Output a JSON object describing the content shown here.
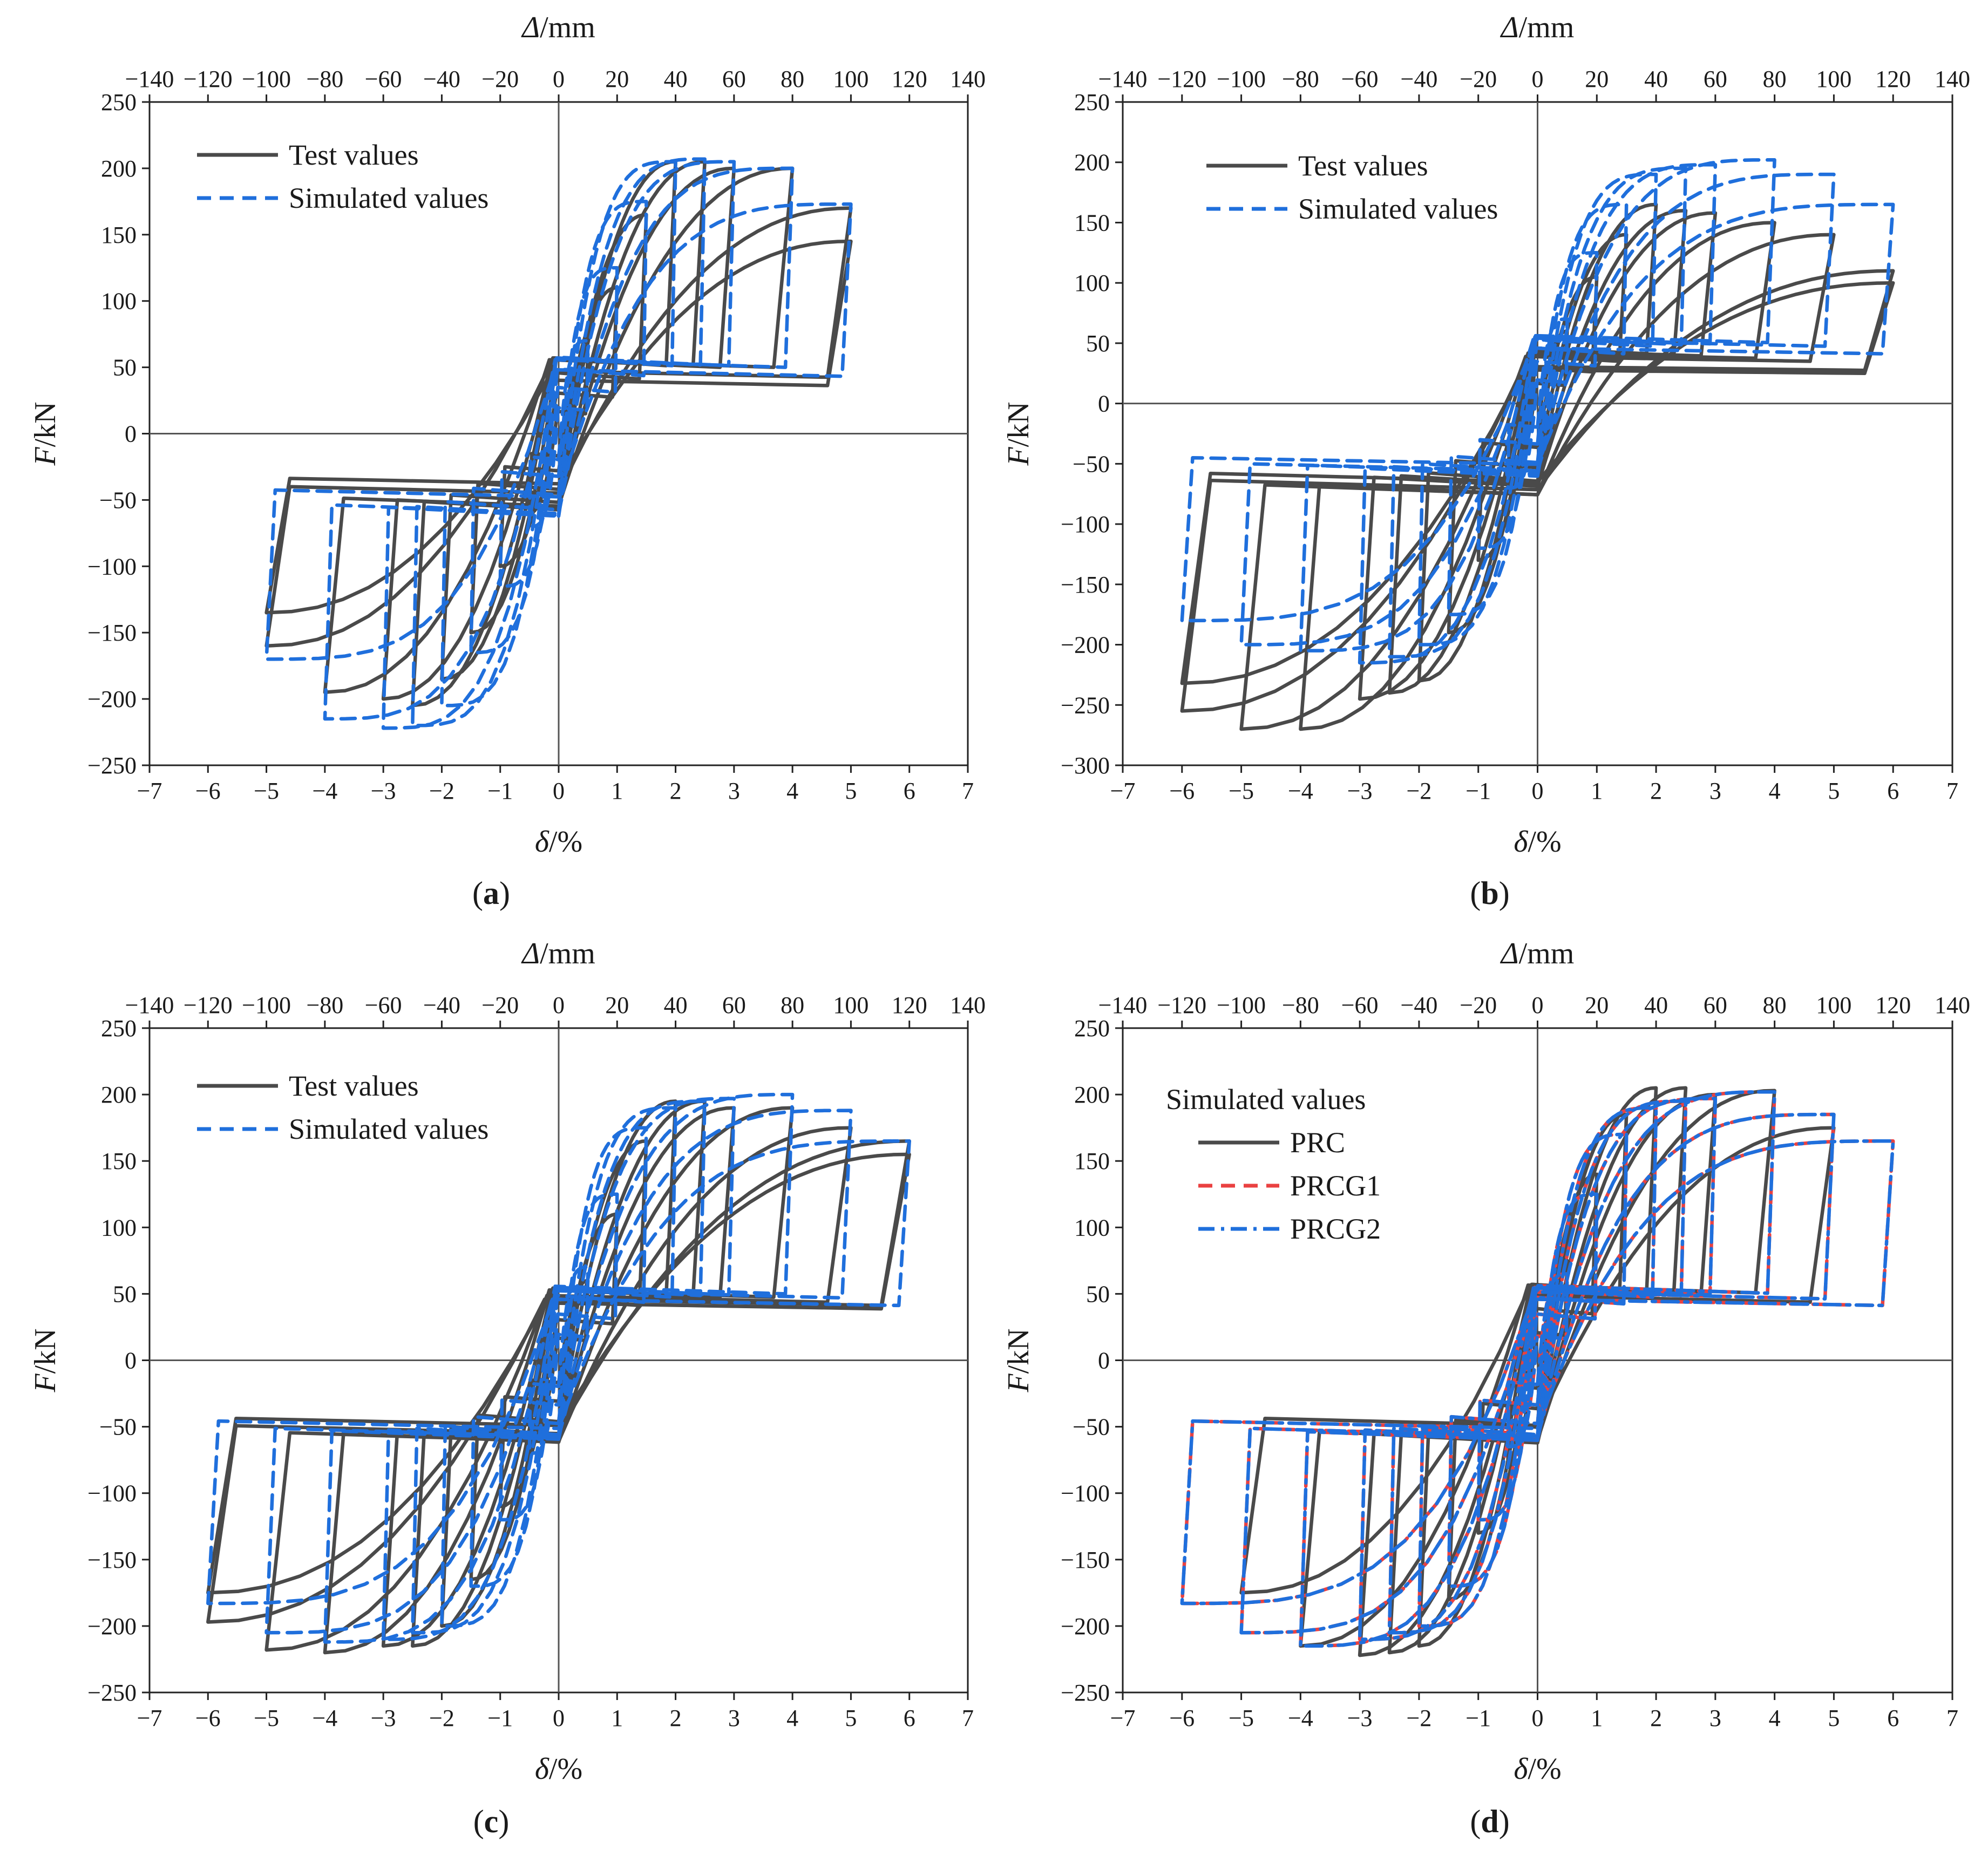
{
  "figure": {
    "panels": [
      {
        "id": "a",
        "caption": "a",
        "caption_open": "(",
        "caption_close": ")",
        "legend": {
          "title": "",
          "entries": [
            {
              "label": "Test values",
              "color": "#4a4a4a",
              "style": "solid"
            },
            {
              "label": "Simulated values",
              "color": "#1f6fdc",
              "style": "dashed"
            }
          ]
        }
      },
      {
        "id": "b",
        "caption": "b",
        "caption_open": "(",
        "caption_close": ")",
        "legend": {
          "title": "",
          "entries": [
            {
              "label": "Test values",
              "color": "#4a4a4a",
              "style": "solid"
            },
            {
              "label": "Simulated values",
              "color": "#1f6fdc",
              "style": "dashed"
            }
          ]
        }
      },
      {
        "id": "c",
        "caption": "c",
        "caption_open": "(",
        "caption_close": ")",
        "legend": {
          "title": "",
          "entries": [
            {
              "label": "Test values",
              "color": "#4a4a4a",
              "style": "solid"
            },
            {
              "label": "Simulated values",
              "color": "#1f6fdc",
              "style": "dashed"
            }
          ]
        }
      },
      {
        "id": "d",
        "caption": "d",
        "caption_open": "(",
        "caption_close": ")",
        "legend": {
          "title": "Simulated values",
          "entries": [
            {
              "label": "PRC",
              "color": "#4a4a4a",
              "style": "solid"
            },
            {
              "label": "PRCG1",
              "color": "#ea4141",
              "style": "dashed"
            },
            {
              "label": "PRCG2",
              "color": "#1f6fdc",
              "style": "dashdot"
            }
          ]
        }
      }
    ]
  },
  "chart_data": [
    {
      "panel": "a",
      "type": "line",
      "title": "",
      "xlabel_sym": "δ",
      "xlabel_unit": "/%",
      "ylabel_sym": "F",
      "ylabel_unit": "/kN",
      "x2label_sym": "Δ",
      "x2label_unit": "/mm",
      "xlim": [
        -7,
        7
      ],
      "ylim": [
        -250,
        250
      ],
      "xticks": [
        -7,
        -6,
        -5,
        -4,
        -3,
        -2,
        -1,
        0,
        1,
        2,
        3,
        4,
        5,
        6,
        7
      ],
      "yticks": [
        -250,
        -200,
        -150,
        -100,
        -50,
        0,
        50,
        100,
        150,
        200,
        250
      ],
      "x2ticks": [
        -140,
        -120,
        -100,
        -80,
        -60,
        -40,
        -20,
        0,
        20,
        40,
        60,
        80,
        100,
        120,
        140
      ],
      "x2_per_x": 20,
      "series": [
        {
          "name": "Test values",
          "style": "solid",
          "color": "#4a4a4a",
          "cycles": [
            {
              "d": 0.5,
              "p": 60,
              "n": -60
            },
            {
              "d": 1.0,
              "p": 110,
              "n": -100
            },
            {
              "d": 1.5,
              "p": 165,
              "n": -150
            },
            {
              "d": 2.0,
              "p": 205,
              "n": -185
            },
            {
              "d": 2.5,
              "p": 205,
              "n": -205
            },
            {
              "d": 3.0,
              "p": 200,
              "n": -200
            },
            {
              "d": 4.0,
              "p": 200,
              "n": -195
            },
            {
              "d": 5.0,
              "p": 170,
              "n": -160
            },
            {
              "d": 5.0,
              "p": 145,
              "n": -135
            }
          ]
        },
        {
          "name": "Simulated values",
          "style": "dashed",
          "color": "#1f6fdc",
          "cycles": [
            {
              "d": 0.5,
              "p": 70,
              "n": -70
            },
            {
              "d": 1.0,
              "p": 125,
              "n": -115
            },
            {
              "d": 1.5,
              "p": 175,
              "n": -165
            },
            {
              "d": 2.0,
              "p": 205,
              "n": -205
            },
            {
              "d": 2.5,
              "p": 207,
              "n": -220
            },
            {
              "d": 3.0,
              "p": 205,
              "n": -222
            },
            {
              "d": 4.0,
              "p": 200,
              "n": -215
            },
            {
              "d": 5.0,
              "p": 173,
              "n": -170
            }
          ]
        }
      ]
    },
    {
      "panel": "b",
      "type": "line",
      "title": "",
      "xlabel_sym": "δ",
      "xlabel_unit": "/%",
      "ylabel_sym": "F",
      "ylabel_unit": "/kN",
      "x2label_sym": "Δ",
      "x2label_unit": "/mm",
      "xlim": [
        -7,
        7
      ],
      "ylim": [
        -300,
        250
      ],
      "xticks": [
        -7,
        -6,
        -5,
        -4,
        -3,
        -2,
        -1,
        0,
        1,
        2,
        3,
        4,
        5,
        6,
        7
      ],
      "yticks": [
        -300,
        -250,
        -200,
        -150,
        -100,
        -50,
        0,
        50,
        100,
        150,
        200,
        250
      ],
      "x2ticks": [
        -140,
        -120,
        -100,
        -80,
        -60,
        -40,
        -20,
        0,
        20,
        40,
        60,
        80,
        100,
        120,
        140
      ],
      "x2_per_x": 20,
      "series": [
        {
          "name": "Test values",
          "style": "solid",
          "color": "#4a4a4a",
          "cycles": [
            {
              "d": 0.5,
              "p": 60,
              "n": -70
            },
            {
              "d": 1.0,
              "p": 105,
              "n": -130
            },
            {
              "d": 1.5,
              "p": 140,
              "n": -190
            },
            {
              "d": 2.0,
              "p": 165,
              "n": -230
            },
            {
              "d": 2.5,
              "p": 160,
              "n": -240
            },
            {
              "d": 3.0,
              "p": 158,
              "n": -245
            },
            {
              "d": 4.0,
              "p": 150,
              "n": -270
            },
            {
              "d": 5.0,
              "p": 140,
              "n": -270
            },
            {
              "d": 6.0,
              "p": 110,
              "n": -255
            },
            {
              "d": 6.0,
              "p": 100,
              "n": -232
            }
          ]
        },
        {
          "name": "Simulated values",
          "style": "dashed",
          "color": "#1f6fdc",
          "cycles": [
            {
              "d": 0.5,
              "p": 70,
              "n": -70
            },
            {
              "d": 1.0,
              "p": 125,
              "n": -120
            },
            {
              "d": 1.5,
              "p": 165,
              "n": -175
            },
            {
              "d": 2.0,
              "p": 190,
              "n": -200
            },
            {
              "d": 2.5,
              "p": 195,
              "n": -210
            },
            {
              "d": 3.0,
              "p": 198,
              "n": -215
            },
            {
              "d": 4.0,
              "p": 202,
              "n": -205
            },
            {
              "d": 5.0,
              "p": 190,
              "n": -200
            },
            {
              "d": 6.0,
              "p": 165,
              "n": -180
            }
          ]
        }
      ]
    },
    {
      "panel": "c",
      "type": "line",
      "title": "",
      "xlabel_sym": "δ",
      "xlabel_unit": "/%",
      "ylabel_sym": "F",
      "ylabel_unit": "/kN",
      "x2label_sym": "Δ",
      "x2label_unit": "/mm",
      "xlim": [
        -7,
        7
      ],
      "ylim": [
        -250,
        250
      ],
      "xticks": [
        -7,
        -6,
        -5,
        -4,
        -3,
        -2,
        -1,
        0,
        1,
        2,
        3,
        4,
        5,
        6,
        7
      ],
      "yticks": [
        -250,
        -200,
        -150,
        -100,
        -50,
        0,
        50,
        100,
        150,
        200,
        250
      ],
      "x2ticks": [
        -140,
        -120,
        -100,
        -80,
        -60,
        -40,
        -20,
        0,
        20,
        40,
        60,
        80,
        100,
        120,
        140
      ],
      "x2_per_x": 20,
      "series": [
        {
          "name": "Test values",
          "style": "solid",
          "color": "#4a4a4a",
          "cycles": [
            {
              "d": 0.5,
              "p": 60,
              "n": -60
            },
            {
              "d": 1.0,
              "p": 110,
              "n": -110
            },
            {
              "d": 1.5,
              "p": 165,
              "n": -165
            },
            {
              "d": 2.0,
              "p": 195,
              "n": -200
            },
            {
              "d": 2.5,
              "p": 195,
              "n": -215
            },
            {
              "d": 3.0,
              "p": 190,
              "n": -215
            },
            {
              "d": 4.0,
              "p": 190,
              "n": -220
            },
            {
              "d": 5.0,
              "p": 175,
              "n": -218
            },
            {
              "d": 6.0,
              "p": 165,
              "n": -197
            },
            {
              "d": 6.0,
              "p": 155,
              "n": -175
            }
          ]
        },
        {
          "name": "Simulated values",
          "style": "dashed",
          "color": "#1f6fdc",
          "cycles": [
            {
              "d": 0.5,
              "p": 70,
              "n": -70
            },
            {
              "d": 1.0,
              "p": 125,
              "n": -120
            },
            {
              "d": 1.5,
              "p": 175,
              "n": -170
            },
            {
              "d": 2.0,
              "p": 190,
              "n": -200
            },
            {
              "d": 2.5,
              "p": 195,
              "n": -205
            },
            {
              "d": 3.0,
              "p": 197,
              "n": -210
            },
            {
              "d": 4.0,
              "p": 200,
              "n": -212
            },
            {
              "d": 5.0,
              "p": 188,
              "n": -205
            },
            {
              "d": 6.0,
              "p": 165,
              "n": -183
            }
          ]
        }
      ]
    },
    {
      "panel": "d",
      "type": "line",
      "title": "",
      "xlabel_sym": "δ",
      "xlabel_unit": "/%",
      "ylabel_sym": "F",
      "ylabel_unit": "/kN",
      "x2label_sym": "Δ",
      "x2label_unit": "/mm",
      "xlim": [
        -7,
        7
      ],
      "ylim": [
        -250,
        250
      ],
      "xticks": [
        -7,
        -6,
        -5,
        -4,
        -3,
        -2,
        -1,
        0,
        1,
        2,
        3,
        4,
        5,
        6,
        7
      ],
      "yticks": [
        -250,
        -200,
        -150,
        -100,
        -50,
        0,
        50,
        100,
        150,
        200,
        250
      ],
      "x2ticks": [
        -140,
        -120,
        -100,
        -80,
        -60,
        -40,
        -20,
        0,
        20,
        40,
        60,
        80,
        100,
        120,
        140
      ],
      "x2_per_x": 20,
      "series": [
        {
          "name": "PRC",
          "style": "solid",
          "color": "#4a4a4a",
          "cycles": [
            {
              "d": 0.5,
              "p": 75,
              "n": -75
            },
            {
              "d": 1.0,
              "p": 140,
              "n": -130
            },
            {
              "d": 1.5,
              "p": 185,
              "n": -180
            },
            {
              "d": 2.0,
              "p": 205,
              "n": -215
            },
            {
              "d": 2.5,
              "p": 205,
              "n": -220
            },
            {
              "d": 3.0,
              "p": 200,
              "n": -222
            },
            {
              "d": 4.0,
              "p": 203,
              "n": -215
            },
            {
              "d": 5.0,
              "p": 175,
              "n": -175
            }
          ]
        },
        {
          "name": "PRCG1",
          "style": "dashed",
          "color": "#ea4141",
          "cycles": [
            {
              "d": 0.5,
              "p": 65,
              "n": -65
            },
            {
              "d": 1.0,
              "p": 125,
              "n": -120
            },
            {
              "d": 1.5,
              "p": 170,
              "n": -170
            },
            {
              "d": 2.0,
              "p": 190,
              "n": -200
            },
            {
              "d": 2.5,
              "p": 195,
              "n": -205
            },
            {
              "d": 3.0,
              "p": 197,
              "n": -210
            },
            {
              "d": 4.0,
              "p": 202,
              "n": -215
            },
            {
              "d": 5.0,
              "p": 185,
              "n": -205
            },
            {
              "d": 6.0,
              "p": 165,
              "n": -183
            }
          ]
        },
        {
          "name": "PRCG2",
          "style": "dashdot",
          "color": "#1f6fdc",
          "cycles": [
            {
              "d": 0.5,
              "p": 65,
              "n": -65
            },
            {
              "d": 1.0,
              "p": 125,
              "n": -120
            },
            {
              "d": 1.5,
              "p": 170,
              "n": -170
            },
            {
              "d": 2.0,
              "p": 190,
              "n": -200
            },
            {
              "d": 2.5,
              "p": 195,
              "n": -205
            },
            {
              "d": 3.0,
              "p": 197,
              "n": -210
            },
            {
              "d": 4.0,
              "p": 202,
              "n": -215
            },
            {
              "d": 5.0,
              "p": 185,
              "n": -205
            },
            {
              "d": 6.0,
              "p": 165,
              "n": -183
            }
          ]
        }
      ]
    }
  ]
}
